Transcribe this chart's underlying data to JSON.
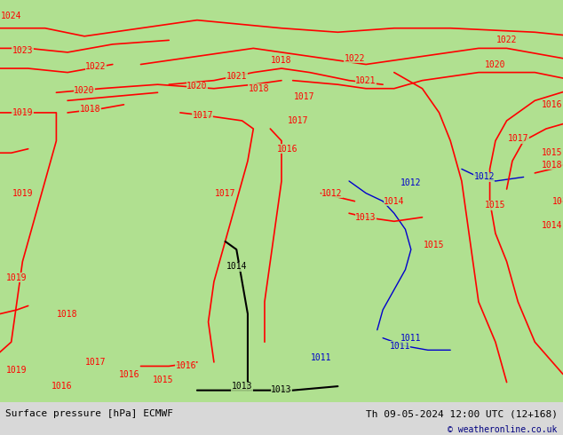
{
  "title_left": "Surface pressure [hPa] ECMWF",
  "title_right": "Th 09-05-2024 12:00 UTC (12+168)",
  "copyright": "© weatheronline.co.uk",
  "bg_color": "#b0e090",
  "fig_width": 6.34,
  "fig_height": 4.9,
  "dpi": 100,
  "bottom_bar_color": "#e8e8e8",
  "bottom_bar_height": 0.075,
  "font_size_bottom": 8,
  "font_size_copyright": 7,
  "contour_color_red": "#ff0000",
  "contour_color_black": "#000000",
  "contour_color_blue": "#0000cc",
  "label_fontsize": 7
}
